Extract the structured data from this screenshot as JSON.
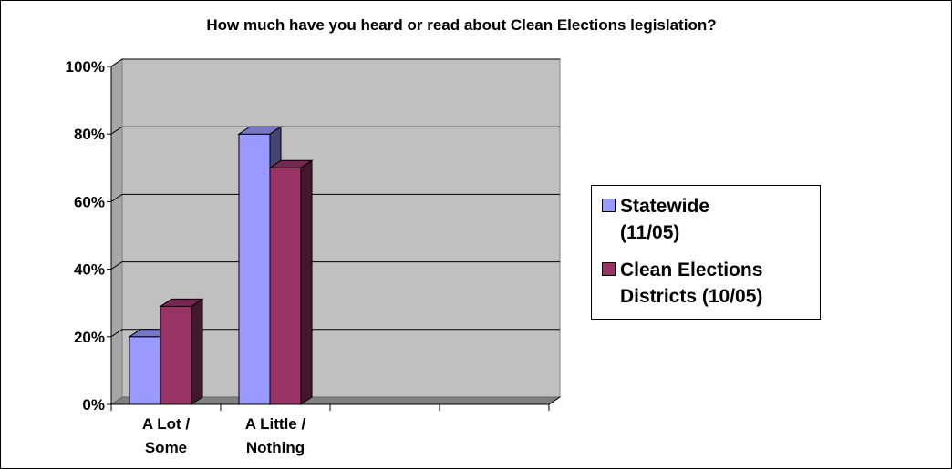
{
  "chart_data": {
    "type": "bar",
    "title": "How much have you heard or read about Clean Elections legislation?",
    "xlabel": "",
    "ylabel": "",
    "categories": [
      "A Lot /\nSome",
      "A Little /\nNothing",
      "",
      ""
    ],
    "series": [
      {
        "name": "Statewide\n(11/05)",
        "values": [
          20,
          80,
          null,
          null
        ],
        "color": "#9999ff"
      },
      {
        "name": "Clean Elections\nDistricts (10/05)",
        "values": [
          29,
          70,
          null,
          null
        ],
        "color": "#993366"
      }
    ],
    "ylim": [
      0,
      100
    ],
    "yticks": [
      0,
      20,
      40,
      60,
      80,
      100
    ],
    "ytick_labels": [
      "0%",
      "20%",
      "40%",
      "60%",
      "80%",
      "100%"
    ],
    "grid": true,
    "three_d": true,
    "legend_position": "right",
    "colors": {
      "plot_wall": "#c0c0c0",
      "floor": "#808080",
      "gridline": "#000000"
    }
  }
}
